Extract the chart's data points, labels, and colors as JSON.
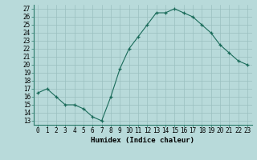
{
  "x": [
    0,
    1,
    2,
    3,
    4,
    5,
    6,
    7,
    8,
    9,
    10,
    11,
    12,
    13,
    14,
    15,
    16,
    17,
    18,
    19,
    20,
    21,
    22,
    23
  ],
  "y": [
    16.5,
    17.0,
    16.0,
    15.0,
    15.0,
    14.5,
    13.5,
    13.0,
    16.0,
    19.5,
    22.0,
    23.5,
    25.0,
    26.5,
    26.5,
    27.0,
    26.5,
    26.0,
    25.0,
    24.0,
    22.5,
    21.5,
    20.5,
    20.0
  ],
  "line_color": "#1a6b5a",
  "marker": "+",
  "marker_color": "#1a6b5a",
  "bg_color": "#b8dada",
  "grid_color": "#9ac0c0",
  "xlabel": "Humidex (Indice chaleur)",
  "xlim": [
    -0.5,
    23.5
  ],
  "ylim": [
    12.5,
    27.5
  ],
  "yticks": [
    13,
    14,
    15,
    16,
    17,
    18,
    19,
    20,
    21,
    22,
    23,
    24,
    25,
    26,
    27
  ],
  "xtick_labels": [
    "0",
    "1",
    "2",
    "3",
    "4",
    "5",
    "6",
    "7",
    "8",
    "9",
    "10",
    "11",
    "12",
    "13",
    "14",
    "15",
    "16",
    "17",
    "18",
    "19",
    "20",
    "21",
    "22",
    "23"
  ],
  "label_fontsize": 6.5,
  "tick_fontsize": 5.5
}
